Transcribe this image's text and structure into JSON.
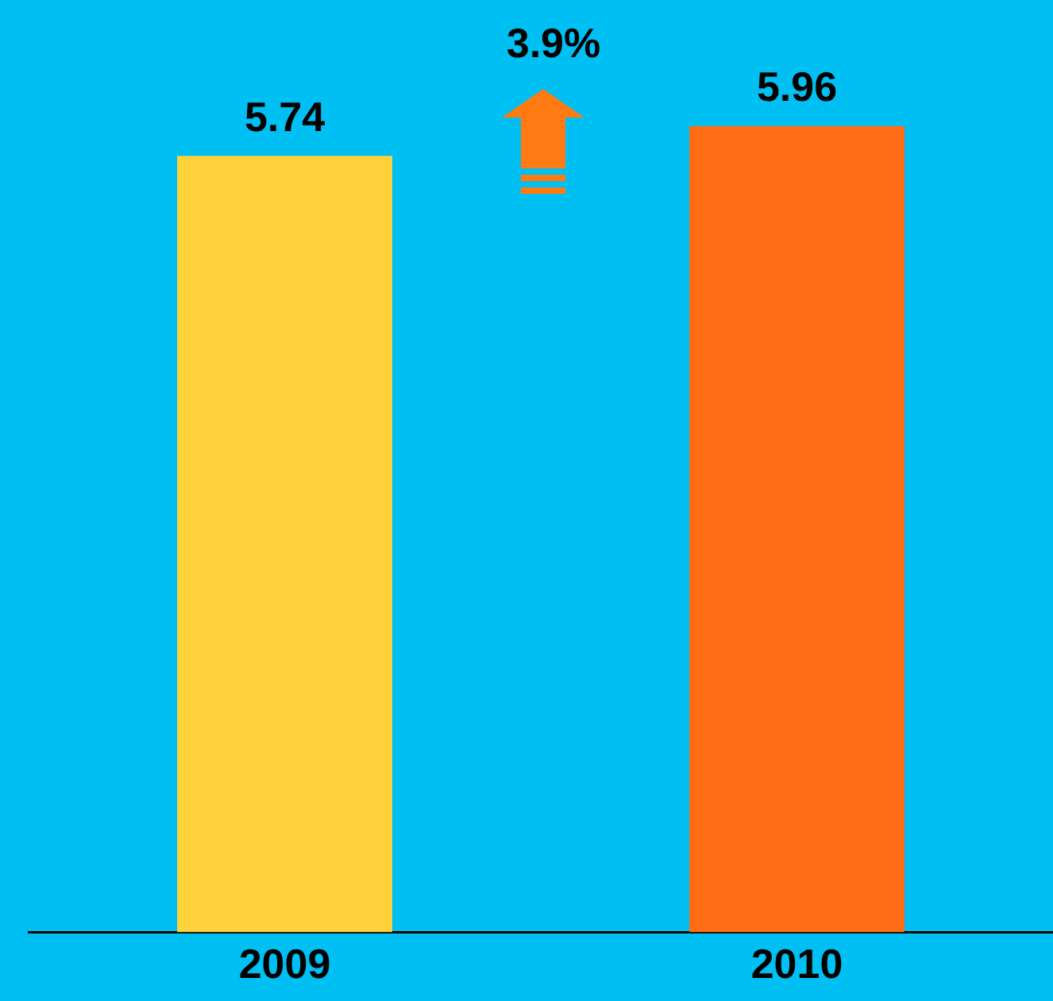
{
  "chart_data": {
    "type": "bar",
    "categories": [
      "2009",
      "2010"
    ],
    "values": [
      5.74,
      5.96
    ],
    "colors": [
      "#ffd23c",
      "#ff6c14"
    ],
    "data_labels": true,
    "grid": false,
    "legend": false,
    "tick_labels": "x",
    "annotations": [
      "3.9%"
    ]
  }
}
